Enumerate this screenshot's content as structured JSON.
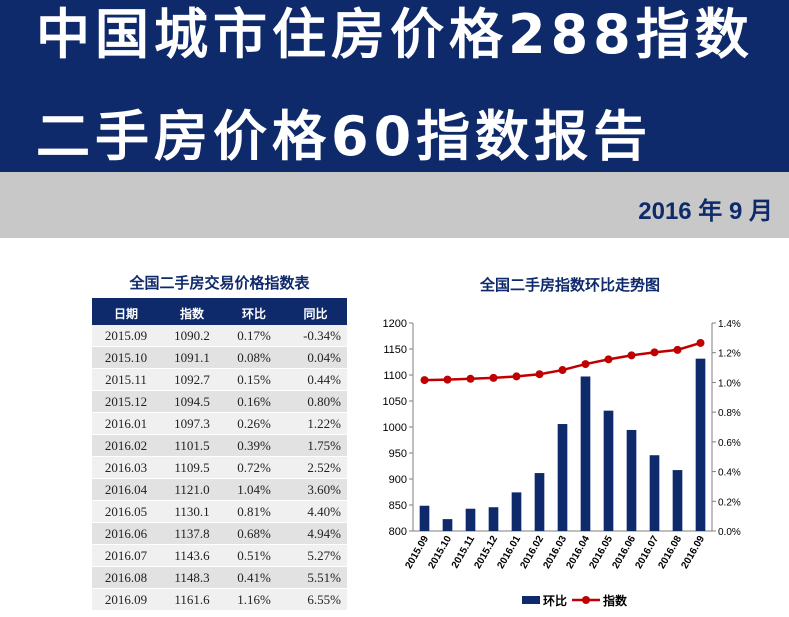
{
  "header": {
    "title_line1": "中国城市住房价格288指数",
    "title_line2": "二手房价格60指数报告",
    "date": "2016 年 9 月"
  },
  "table": {
    "title": "全国二手房交易价格指数表",
    "columns": [
      "日期",
      "指数",
      "环比",
      "同比"
    ],
    "rows": [
      [
        "2015.09",
        "1090.2",
        "0.17%",
        "-0.34%"
      ],
      [
        "2015.10",
        "1091.1",
        "0.08%",
        "0.04%"
      ],
      [
        "2015.11",
        "1092.7",
        "0.15%",
        "0.44%"
      ],
      [
        "2015.12",
        "1094.5",
        "0.16%",
        "0.80%"
      ],
      [
        "2016.01",
        "1097.3",
        "0.26%",
        "1.22%"
      ],
      [
        "2016.02",
        "1101.5",
        "0.39%",
        "1.75%"
      ],
      [
        "2016.03",
        "1109.5",
        "0.72%",
        "2.52%"
      ],
      [
        "2016.04",
        "1121.0",
        "1.04%",
        "3.60%"
      ],
      [
        "2016.05",
        "1130.1",
        "0.81%",
        "4.40%"
      ],
      [
        "2016.06",
        "1137.8",
        "0.68%",
        "4.94%"
      ],
      [
        "2016.07",
        "1143.6",
        "0.51%",
        "5.27%"
      ],
      [
        "2016.08",
        "1148.3",
        "0.41%",
        "5.51%"
      ],
      [
        "2016.09",
        "1161.6",
        "1.16%",
        "6.55%"
      ]
    ]
  },
  "chart_data": {
    "type": "bar",
    "title": "全国二手房指数环比走势图",
    "categories": [
      "2015.09",
      "2015.10",
      "2015.11",
      "2015.12",
      "2016.01",
      "2016.02",
      "2016.03",
      "2016.04",
      "2016.05",
      "2016.06",
      "2016.07",
      "2016.08",
      "2016.09"
    ],
    "series": [
      {
        "name": "环比",
        "type": "bar",
        "axis": "right",
        "color": "#0f2a6b",
        "values": [
          0.17,
          0.08,
          0.15,
          0.16,
          0.26,
          0.39,
          0.72,
          1.04,
          0.81,
          0.68,
          0.51,
          0.41,
          1.16
        ]
      },
      {
        "name": "指数",
        "type": "line",
        "axis": "left",
        "color": "#c00000",
        "values": [
          1090.2,
          1091.1,
          1092.7,
          1094.5,
          1097.3,
          1101.5,
          1109.5,
          1121.0,
          1130.1,
          1137.8,
          1143.6,
          1148.3,
          1161.6
        ]
      }
    ],
    "y_left": {
      "min": 800,
      "max": 1200,
      "ticks": [
        "800",
        "850",
        "900",
        "950",
        "1000",
        "1050",
        "1100",
        "1150",
        "1200"
      ]
    },
    "y_right": {
      "min": 0,
      "max": 1.4,
      "ticks": [
        "0.0%",
        "0.2%",
        "0.4%",
        "0.6%",
        "0.8%",
        "1.0%",
        "1.2%",
        "1.4%"
      ]
    },
    "grid": false,
    "legend": "bottom"
  }
}
